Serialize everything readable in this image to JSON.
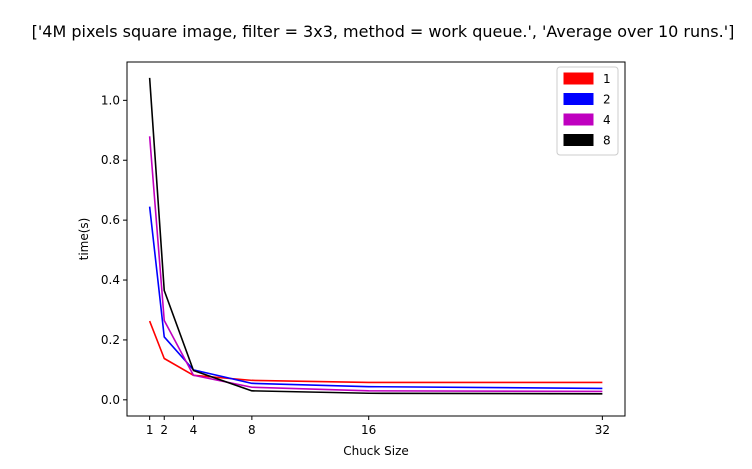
{
  "chart_data": {
    "type": "line",
    "title": "['4M pixels square image, filter = 3x3, method = work queue.', 'Average over 10 runs.']",
    "xlabel": "Chuck Size",
    "ylabel": "time(s)",
    "x": [
      1,
      2,
      4,
      8,
      16,
      32
    ],
    "x_ticks": [
      "1",
      "2",
      "4",
      "8",
      "16",
      "32"
    ],
    "y_ticks": [
      "0.0",
      "0.2",
      "0.4",
      "0.6",
      "0.8",
      "1.0"
    ],
    "xlim": [
      -0.55,
      33.55
    ],
    "ylim": [
      -0.054,
      1.128
    ],
    "grid": false,
    "legend_position": "top-right",
    "series": [
      {
        "name": "1",
        "color": "#ff0000",
        "values": [
          0.263,
          0.138,
          0.082,
          0.065,
          0.058,
          0.058
        ]
      },
      {
        "name": "2",
        "color": "#0000ff",
        "values": [
          0.645,
          0.21,
          0.1,
          0.055,
          0.044,
          0.038
        ]
      },
      {
        "name": "4",
        "color": "#bf00bf",
        "values": [
          0.88,
          0.265,
          0.082,
          0.042,
          0.03,
          0.028
        ]
      },
      {
        "name": "8",
        "color": "#000000",
        "values": [
          1.075,
          0.365,
          0.098,
          0.03,
          0.022,
          0.02
        ]
      }
    ]
  }
}
